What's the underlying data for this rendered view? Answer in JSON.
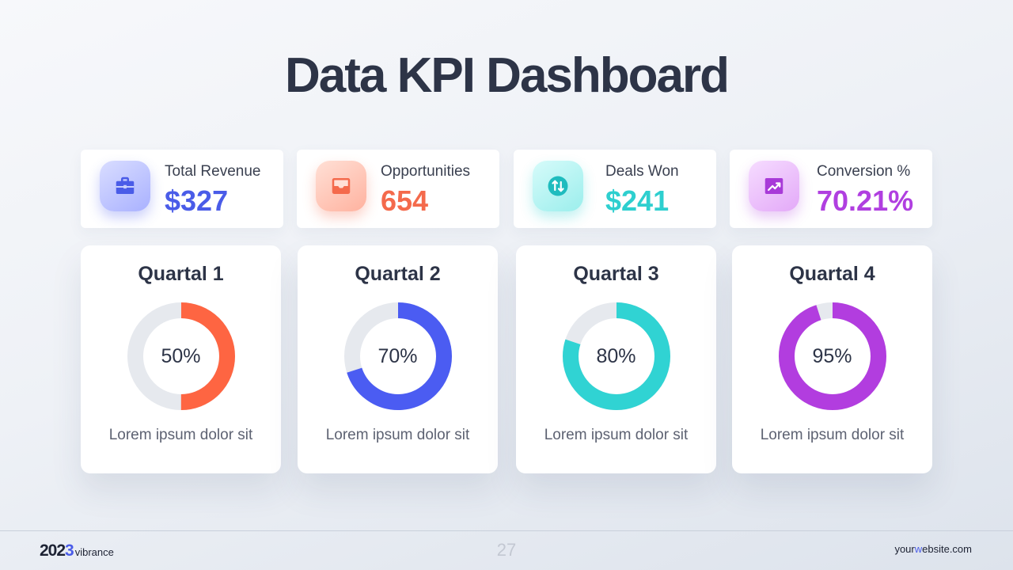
{
  "title": "Data KPI Dashboard",
  "kpis": [
    {
      "label": "Total Revenue",
      "value": "$327",
      "color": "#4a5ce8",
      "icon": "briefcase-icon"
    },
    {
      "label": "Opportunities",
      "value": "654",
      "color": "#f46a4c",
      "icon": "inbox-icon"
    },
    {
      "label": "Deals Won",
      "value": "$241",
      "color": "#2ecfcf",
      "icon": "swap-arrows-icon"
    },
    {
      "label": "Conversion %",
      "value": "70.21%",
      "color": "#b03fe0",
      "icon": "trend-up-icon"
    }
  ],
  "chart_data": [
    {
      "type": "pie",
      "title": "Quartal 1",
      "values": [
        50,
        50
      ],
      "label": "50%",
      "color": "#fe6542",
      "track_color": "#e6e9ee",
      "caption": "Lorem ipsum dolor sit"
    },
    {
      "type": "pie",
      "title": "Quartal 2",
      "values": [
        70,
        30
      ],
      "label": "70%",
      "color": "#4b5cf2",
      "track_color": "#e6e9ee",
      "caption": "Lorem ipsum dolor sit"
    },
    {
      "type": "pie",
      "title": "Quartal 3",
      "values": [
        80,
        20
      ],
      "label": "80%",
      "color": "#30d3d3",
      "track_color": "#e6e9ee",
      "caption": "Lorem ipsum dolor sit"
    },
    {
      "type": "pie",
      "title": "Quartal 4",
      "values": [
        95,
        5
      ],
      "label": "95%",
      "color": "#b23ddf",
      "track_color": "#e6e9ee",
      "caption": "Lorem ipsum dolor sit"
    }
  ],
  "footer": {
    "year_prefix": "202",
    "year_accent": "3",
    "brand_name": "vibrance",
    "page_number": "27",
    "website_prefix": "your",
    "website_accent": "w",
    "website_suffix": "ebsite.com"
  }
}
